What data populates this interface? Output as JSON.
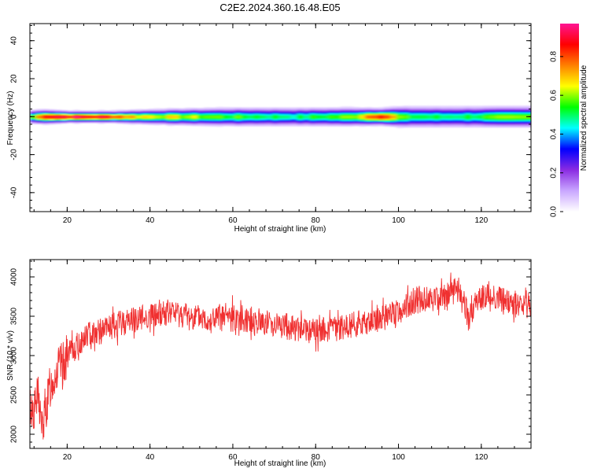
{
  "figure": {
    "title": "C2E2.2024.360.16.48.E05"
  },
  "chart_data": [
    {
      "type": "heatmap",
      "xlabel": "Height of straight line (km)",
      "ylabel": "Frequency (Hz)",
      "xlim": [
        11,
        132
      ],
      "ylim": [
        -50,
        49
      ],
      "xticks": [
        20,
        40,
        60,
        80,
        100,
        120
      ],
      "yticks": [
        -40,
        -20,
        0,
        20,
        40
      ],
      "colorbar": {
        "label": "Normalized spectral amplitude",
        "range": [
          0,
          0.97
        ],
        "ticks": [
          0.0,
          0.2,
          0.4,
          0.6,
          0.8
        ],
        "tick_labels": [
          "0.0",
          "0.2",
          "0.4",
          "0.6",
          "0.8"
        ],
        "colormap": [
          "#ffffff",
          "#c9a6ff",
          "#8a2be2",
          "#0000ff",
          "#00ffff",
          "#00ff00",
          "#ffff00",
          "#ff8000",
          "#ff0000",
          "#ff1493"
        ]
      },
      "band": {
        "center_hz": 0,
        "description_points": [
          {
            "x": 11,
            "amp": 0.6,
            "halfwidth_hz": 3
          },
          {
            "x": 14,
            "amp": 0.95,
            "halfwidth_hz": 3
          },
          {
            "x": 20,
            "amp": 0.92,
            "halfwidth_hz": 2.5
          },
          {
            "x": 30,
            "amp": 0.88,
            "halfwidth_hz": 2.5
          },
          {
            "x": 36,
            "amp": 0.7,
            "halfwidth_hz": 3
          },
          {
            "x": 45,
            "amp": 0.65,
            "halfwidth_hz": 3.5
          },
          {
            "x": 60,
            "amp": 0.55,
            "halfwidth_hz": 4
          },
          {
            "x": 75,
            "amp": 0.5,
            "halfwidth_hz": 4
          },
          {
            "x": 88,
            "amp": 0.6,
            "halfwidth_hz": 4
          },
          {
            "x": 95,
            "amp": 0.95,
            "halfwidth_hz": 3.5
          },
          {
            "x": 100,
            "amp": 0.55,
            "halfwidth_hz": 4.5
          },
          {
            "x": 110,
            "amp": 0.5,
            "halfwidth_hz": 4.5
          },
          {
            "x": 120,
            "amp": 0.55,
            "halfwidth_hz": 4.5
          },
          {
            "x": 132,
            "amp": 0.6,
            "halfwidth_hz": 4.5
          }
        ]
      }
    },
    {
      "type": "line",
      "xlabel": "Height of straight line (km)",
      "ylabel": "SNR (10 * v/v)",
      "xlim": [
        11,
        132
      ],
      "ylim": [
        1820,
        4220
      ],
      "xticks": [
        20,
        40,
        60,
        80,
        100,
        120
      ],
      "yticks": [
        2000,
        2500,
        3000,
        3500,
        4000
      ],
      "color": "#f03030",
      "series": [
        {
          "x": [
            11,
            12,
            13,
            14,
            15,
            16,
            17,
            18,
            19,
            20,
            22,
            24,
            26,
            28,
            30,
            35,
            40,
            45,
            50,
            55,
            60,
            65,
            70,
            75,
            80,
            85,
            90,
            95,
            100,
            102,
            105,
            110,
            112,
            115,
            117,
            118,
            120,
            125,
            130,
            132
          ],
          "y": [
            2350,
            2300,
            2500,
            2050,
            2350,
            2600,
            2750,
            2850,
            2900,
            3000,
            3100,
            3200,
            3300,
            3300,
            3350,
            3450,
            3500,
            3550,
            3500,
            3450,
            3500,
            3450,
            3400,
            3350,
            3300,
            3350,
            3400,
            3450,
            3550,
            3650,
            3700,
            3750,
            3800,
            3850,
            3450,
            3600,
            3750,
            3700,
            3600,
            3650
          ]
        }
      ]
    }
  ]
}
